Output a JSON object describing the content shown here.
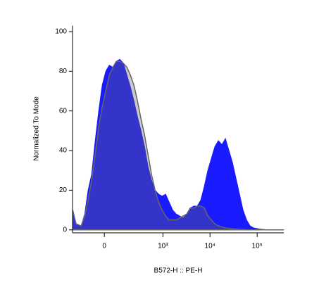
{
  "chart_data": {
    "type": "area",
    "x_label": "B572-H :: PE-H",
    "y_label": "Normalized To Mode",
    "x_scale": "biexponential",
    "x": [
      -258,
      -214,
      -160,
      -128,
      -101,
      -76,
      -53,
      -32,
      -12,
      8,
      28,
      49,
      71,
      95,
      123,
      154,
      189,
      230,
      278,
      334,
      400,
      477,
      569,
      679,
      809,
      960,
      1141,
      1356,
      1610,
      1914,
      2274,
      2702,
      3210,
      3810,
      4520,
      5370,
      6380,
      7580,
      9000,
      10680,
      12680,
      15060,
      17880,
      21240,
      25200,
      29900,
      35500,
      42200,
      50100,
      59500,
      70600,
      83900,
      118500,
      167000,
      360000
    ],
    "series": [
      {
        "color": "#1a1aff",
        "values": [
          10,
          3,
          2,
          8,
          20,
          28,
          45,
          60,
          73,
          80,
          83,
          82,
          85,
          86,
          84,
          78,
          72,
          65,
          57,
          50,
          42,
          32,
          25,
          20,
          18,
          17,
          18,
          14,
          10,
          8,
          7,
          6,
          8,
          11,
          12,
          12,
          15,
          22,
          30,
          36,
          42,
          45,
          43,
          46,
          40,
          34,
          26,
          18,
          10,
          5,
          2,
          1,
          0.3,
          0,
          0
        ]
      },
      {
        "color": "#666666",
        "values": [
          10,
          3,
          2,
          7,
          15,
          25,
          38,
          52,
          62,
          70,
          78,
          82,
          85,
          85,
          84,
          82,
          78,
          73,
          65,
          56,
          48,
          38,
          28,
          20,
          14,
          10,
          7,
          5,
          5,
          5,
          6,
          7,
          8,
          11,
          11,
          12,
          12,
          11,
          7,
          5,
          3,
          2,
          1.5,
          1,
          0.7,
          0.5,
          0.4,
          0.3,
          0.2,
          0,
          0,
          0,
          0,
          0,
          0
        ]
      }
    ],
    "xlim": [
      -260,
      367000
    ],
    "xticks": [
      0,
      {
        "value": 1000,
        "label": "10³"
      },
      {
        "value": 10000,
        "label": "10⁴"
      },
      {
        "value": 100000,
        "label": "10⁵"
      }
    ],
    "ylim": [
      -1.5,
      103
    ],
    "yticks": [
      0,
      20,
      40,
      60,
      80,
      100
    ]
  }
}
